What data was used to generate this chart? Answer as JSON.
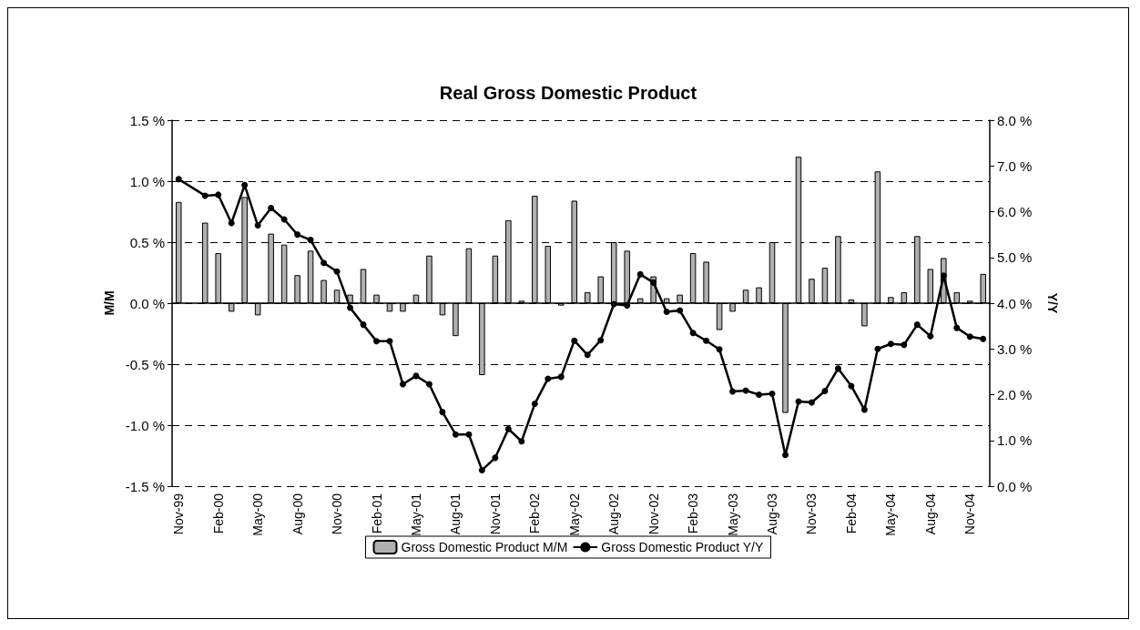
{
  "chart_data": {
    "type": "bar",
    "title": "Real Gross Domestic Product",
    "ylabel": "M/M",
    "y2label": "Y/Y",
    "categories": [
      "Nov-99",
      null,
      null,
      "Feb-00",
      null,
      null,
      "May-00",
      null,
      null,
      "Aug-00",
      null,
      null,
      "Nov-00",
      null,
      null,
      "Feb-01",
      null,
      null,
      "May-01",
      null,
      null,
      "Aug-01",
      null,
      null,
      "Nov-01",
      null,
      null,
      "Feb-02",
      null,
      null,
      "May-02",
      null,
      null,
      "Aug-02",
      null,
      null,
      "Nov-02",
      null,
      null,
      "Feb-03",
      null,
      null,
      "May-03",
      null,
      null,
      "Aug-03",
      null,
      null,
      "Nov-03",
      null,
      null,
      "Feb-04",
      null,
      null,
      "May-04",
      null,
      null,
      "Aug-04",
      null,
      null,
      "Nov-04",
      null
    ],
    "series": [
      {
        "name": "Gross Domestic Product M/M",
        "color": "#b0b0b0",
        "values": [
          0.83,
          null,
          0.66,
          0.41,
          -0.07,
          0.87,
          -0.1,
          0.57,
          0.48,
          0.23,
          0.43,
          0.19,
          0.11,
          0.07,
          0.28,
          0.07,
          -0.07,
          -0.07,
          0.07,
          0.39,
          -0.1,
          -0.27,
          0.45,
          -0.59,
          0.39,
          0.68,
          0.02,
          0.88,
          0.47,
          -0.02,
          0.84,
          0.09,
          0.22,
          0.5,
          0.43,
          0.04,
          0.22,
          0.04,
          0.07,
          0.41,
          0.34,
          -0.22,
          -0.07,
          0.11,
          0.13,
          0.5,
          -0.9,
          1.2,
          0.2,
          0.29,
          0.55,
          0.03,
          -0.19,
          1.08,
          0.05,
          0.09,
          0.55,
          0.28,
          0.37,
          0.09,
          0.02,
          0.24
        ]
      },
      {
        "name": "Gross Domestic Product Y/Y",
        "type": "line",
        "axis": "y2",
        "color": "#000000",
        "marker": "circle",
        "line_style": "solid",
        "values": [
          6.71,
          null,
          6.35,
          6.37,
          5.75,
          6.58,
          5.7,
          6.08,
          5.83,
          5.5,
          5.38,
          4.88,
          4.69,
          3.9,
          3.53,
          3.17,
          3.17,
          2.23,
          2.41,
          2.23,
          1.62,
          1.13,
          1.13,
          0.35,
          0.62,
          1.25,
          0.98,
          1.8,
          2.35,
          2.39,
          3.18,
          2.87,
          3.19,
          3.98,
          3.95,
          4.63,
          4.45,
          3.81,
          3.84,
          3.35,
          3.18,
          2.99,
          2.07,
          2.09,
          2.0,
          2.02,
          0.68,
          1.85,
          1.83,
          2.08,
          2.57,
          2.19,
          1.67,
          3.0,
          3.11,
          3.09,
          3.53,
          3.28,
          4.6,
          3.46,
          3.27,
          3.22
        ]
      }
    ],
    "ylim": [
      -1.5,
      1.5
    ],
    "yticks": [
      {
        "value": -1.5,
        "label": "-1.5 %"
      },
      {
        "value": -1,
        "label": "-1.0 %"
      },
      {
        "value": -0.5,
        "label": "-0.5 %"
      },
      {
        "value": 0,
        "label": "0.0 %"
      },
      {
        "value": 0.5,
        "label": "0.5 %"
      },
      {
        "value": 1,
        "label": "1.0 %"
      },
      {
        "value": 1.5,
        "label": "1.5 %"
      }
    ],
    "y2lim": [
      0,
      8
    ],
    "y2ticks": [
      {
        "value": 0,
        "label": "0.0 %"
      },
      {
        "value": 1,
        "label": "1.0 %"
      },
      {
        "value": 2,
        "label": "2.0 %"
      },
      {
        "value": 3,
        "label": "3.0 %"
      },
      {
        "value": 4,
        "label": "4.0 %"
      },
      {
        "value": 5,
        "label": "5.0 %"
      },
      {
        "value": 6,
        "label": "6.0 %"
      },
      {
        "value": 7,
        "label": "7.0 %"
      },
      {
        "value": 8,
        "label": "8.0 %"
      }
    ],
    "grid": "y",
    "legend": "bottom"
  }
}
